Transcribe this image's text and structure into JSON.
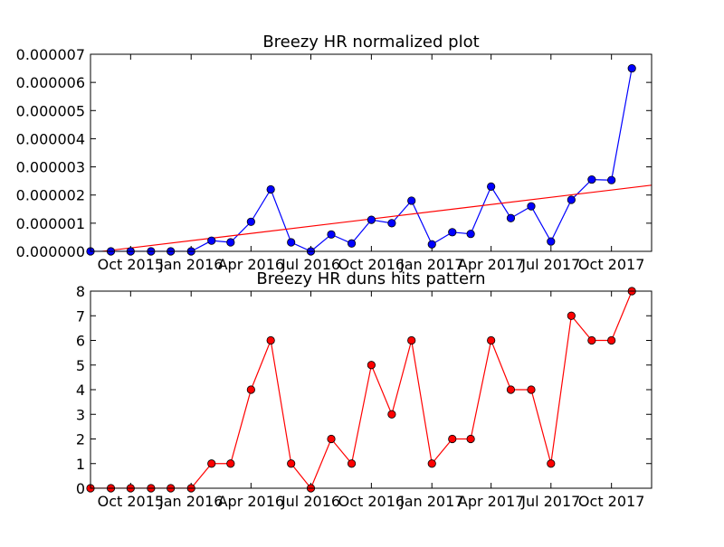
{
  "chart_data": [
    {
      "type": "line",
      "title": "Breezy HR normalized plot",
      "x_tick_labels": [
        "Oct 2015",
        "Jan 2016",
        "Apr 2016",
        "Jul 2016",
        "Oct 2016",
        "Jan 2017",
        "Apr 2017",
        "Jul 2017",
        "Oct 2017"
      ],
      "y_tick_labels": [
        "0.000000",
        "0.000001",
        "0.000002",
        "0.000003",
        "0.000004",
        "0.000005",
        "0.000006",
        "0.000007"
      ],
      "ylim": [
        0,
        7e-06
      ],
      "xlim": [
        "2015-08-01",
        "2017-12-01"
      ],
      "series": [
        {
          "color": "#0000ff",
          "marker": "circle",
          "x": [
            "2015-08-01",
            "2015-09-01",
            "2015-10-01",
            "2015-11-01",
            "2015-12-01",
            "2016-01-01",
            "2016-02-01",
            "2016-03-01",
            "2016-04-01",
            "2016-05-01",
            "2016-06-01",
            "2016-07-01",
            "2016-08-01",
            "2016-09-01",
            "2016-10-01",
            "2016-11-01",
            "2016-12-01",
            "2017-01-01",
            "2017-02-01",
            "2017-03-01",
            "2017-04-01",
            "2017-05-01",
            "2017-06-01",
            "2017-07-01",
            "2017-08-01",
            "2017-09-01",
            "2017-10-01",
            "2017-11-01"
          ],
          "y": [
            0.0,
            0.0,
            0.0,
            0.0,
            0.0,
            0.0,
            3.8e-07,
            3.2e-07,
            1.05e-06,
            2.2e-06,
            3.2e-07,
            0.0,
            6e-07,
            2.8e-07,
            1.12e-06,
            1e-06,
            1.8e-06,
            2.5e-07,
            6.8e-07,
            6.2e-07,
            2.3e-06,
            1.18e-06,
            1.6e-06,
            3.5e-07,
            1.83e-06,
            2.55e-06,
            2.53e-06,
            6.5e-06
          ]
        },
        {
          "color": "#ff0000",
          "marker": "none",
          "x": [
            "2015-08-01",
            "2017-12-01"
          ],
          "y": [
            -5e-08,
            2.35e-06
          ]
        }
      ]
    },
    {
      "type": "line",
      "title": "Breezy HR duns hits pattern",
      "x_tick_labels": [
        "Oct 2015",
        "Jan 2016",
        "Apr 2016",
        "Jul 2016",
        "Oct 2016",
        "Jan 2017",
        "Apr 2017",
        "Jul 2017",
        "Oct 2017"
      ],
      "y_tick_labels": [
        "0",
        "1",
        "2",
        "3",
        "4",
        "5",
        "6",
        "7",
        "8"
      ],
      "ylim": [
        0,
        8
      ],
      "xlim": [
        "2015-08-01",
        "2017-12-01"
      ],
      "series": [
        {
          "color": "#ff0000",
          "marker": "circle",
          "x": [
            "2015-08-01",
            "2015-09-01",
            "2015-10-01",
            "2015-11-01",
            "2015-12-01",
            "2016-01-01",
            "2016-02-01",
            "2016-03-01",
            "2016-04-01",
            "2016-05-01",
            "2016-06-01",
            "2016-07-01",
            "2016-08-01",
            "2016-09-01",
            "2016-10-01",
            "2016-11-01",
            "2016-12-01",
            "2017-01-01",
            "2017-02-01",
            "2017-03-01",
            "2017-04-01",
            "2017-05-01",
            "2017-06-01",
            "2017-07-01",
            "2017-08-01",
            "2017-09-01",
            "2017-10-01",
            "2017-11-01"
          ],
          "y": [
            0,
            0,
            0,
            0,
            0,
            0,
            1,
            1,
            4,
            6,
            1,
            0,
            2,
            1,
            5,
            3,
            6,
            1,
            2,
            2,
            6,
            4,
            4,
            1,
            7,
            6,
            6,
            8
          ]
        }
      ]
    }
  ]
}
